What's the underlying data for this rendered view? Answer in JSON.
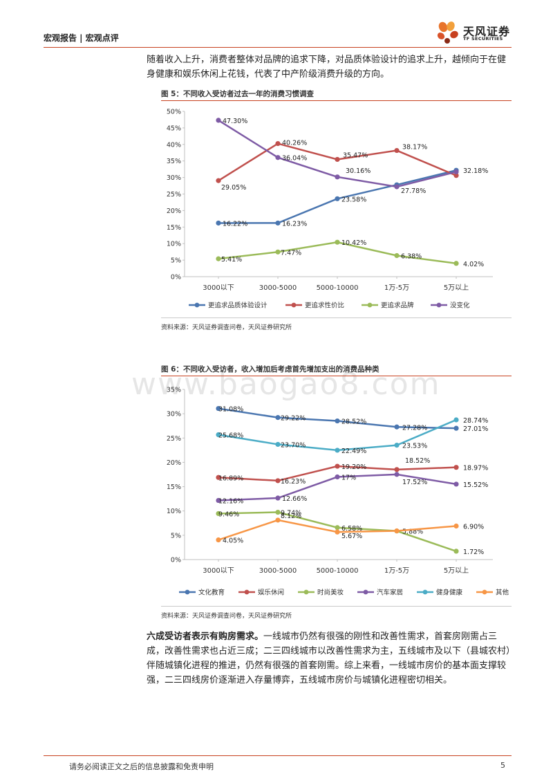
{
  "header": {
    "left_text": "宏观报告 | 宏观点评"
  },
  "logo": {
    "cn": "天风证券",
    "en": "TF SECURITIES"
  },
  "intro_paragraph": "随着收入上升，消费者整体对品牌的追求下降，对品质体验设计的追求上升，越倾向于在健身健康和娱乐休闲上花钱，代表了中产阶级消费升级的方向。",
  "colors": {
    "accent": "#c7401e",
    "blue": "#4a76b0",
    "red": "#c0504d",
    "green": "#9bbb59",
    "purple": "#7e5ba5",
    "teal": "#4bacc6",
    "orange": "#f79646"
  },
  "watermark": "www.baogao8.com",
  "chart_data": [
    {
      "type": "line",
      "title": "图 5：不同收入受访者过去一年的消费习惯调查",
      "source": "资料来源：天风证券调查问卷，天风证券研究所",
      "categories": [
        "3000以下",
        "3000-5000",
        "5000-10000",
        "1万-5万",
        "5万以上"
      ],
      "y_ticks": [
        "0%",
        "5%",
        "10%",
        "15%",
        "20%",
        "25%",
        "30%",
        "35%",
        "40%",
        "45%",
        "50%"
      ],
      "ylim": [
        0,
        50
      ],
      "legend_position": "bottom",
      "series": [
        {
          "name": "更追求品质体验设计",
          "color": "#4a76b0",
          "values": [
            16.22,
            16.23,
            23.58,
            27.78,
            32.18
          ],
          "labels": [
            "16.22%",
            "16.23%",
            "23.58%",
            "27.78%",
            "32.18%"
          ]
        },
        {
          "name": "更追求性价比",
          "color": "#c0504d",
          "values": [
            29.05,
            40.26,
            35.47,
            38.17,
            30.6
          ],
          "labels": [
            "29.05%",
            "40.26%",
            "35.47%",
            "38.17%",
            ""
          ]
        },
        {
          "name": "更追求品牌",
          "color": "#9bbb59",
          "values": [
            5.41,
            7.47,
            10.42,
            6.38,
            4.02
          ],
          "labels": [
            "5.41%",
            "7.47%",
            "10.42%",
            "6.38%",
            "4.02%"
          ]
        },
        {
          "name": "没变化",
          "color": "#7e5ba5",
          "values": [
            47.3,
            36.04,
            30.16,
            27.2,
            31.7
          ],
          "labels": [
            "47.30%",
            "36.04%",
            "30.16%",
            "",
            ""
          ]
        }
      ]
    },
    {
      "type": "line",
      "title": "图 6：不同收入受访者，收入增加后考虑首先增加支出的消费品种类",
      "source": "资料来源：天风证券调查问卷，天风证券研究所",
      "categories": [
        "3000以下",
        "3000-5000",
        "5000-10000",
        "1万-5万",
        "5万以上"
      ],
      "y_ticks": [
        "0%",
        "5%",
        "10%",
        "15%",
        "20%",
        "25%",
        "30%",
        "35%"
      ],
      "ylim": [
        0,
        35
      ],
      "legend_position": "bottom",
      "series": [
        {
          "name": "文化教育",
          "color": "#4a76b0",
          "values": [
            31.08,
            29.22,
            28.52,
            27.28,
            27.01
          ],
          "labels": [
            "31.08%",
            "29.22%",
            "28.52%",
            "27.28%",
            "27.01%"
          ]
        },
        {
          "name": "娱乐休闲",
          "color": "#c0504d",
          "values": [
            16.89,
            16.23,
            19.2,
            18.52,
            18.97
          ],
          "labels": [
            "16.89%",
            "16.23%",
            "19.20%",
            "18.52%",
            "18.97%"
          ]
        },
        {
          "name": "时尚美妆",
          "color": "#9bbb59",
          "values": [
            9.46,
            9.74,
            6.58,
            5.88,
            1.72
          ],
          "labels": [
            "9.46%",
            "9.74%",
            "6.58%",
            "5.88%",
            "1.72%"
          ]
        },
        {
          "name": "汽车家居",
          "color": "#7e5ba5",
          "values": [
            12.16,
            12.66,
            17.0,
            17.52,
            15.52
          ],
          "labels": [
            "12.16%",
            "12.66%",
            "17%",
            "17.52%",
            "15.52%"
          ]
        },
        {
          "name": "健身健康",
          "color": "#4bacc6",
          "values": [
            25.68,
            23.7,
            22.49,
            23.53,
            28.74
          ],
          "labels": [
            "25.68%",
            "23.70%",
            "22.49%",
            "23.53%",
            "28.74%"
          ]
        },
        {
          "name": "其他",
          "color": "#f79646",
          "values": [
            4.05,
            8.12,
            5.67,
            5.9,
            6.9
          ],
          "labels": [
            "4.05%",
            "8.12%",
            "5.67%",
            "",
            "6.90%"
          ]
        }
      ]
    }
  ],
  "conclusion": {
    "bold": "六成受访者表示有购房需求。",
    "text": "一线城市仍然有很强的刚性和改善性需求，首套房刚需占三成，改善性需求也占近三成；二三四线城市以改善性需求为主，五线城市及以下（县城农村）伴随城镇化进程的推进，仍然有很强的首套刚需。综上来看，一线城市房价的基本面支撑较强，二三四线房价逐渐进入存量博弈，五线城市房价与城镇化进程密切相关。"
  },
  "footer": {
    "disclaimer": "请务必阅读正文之后的信息披露和免责申明",
    "page_number": "5"
  }
}
